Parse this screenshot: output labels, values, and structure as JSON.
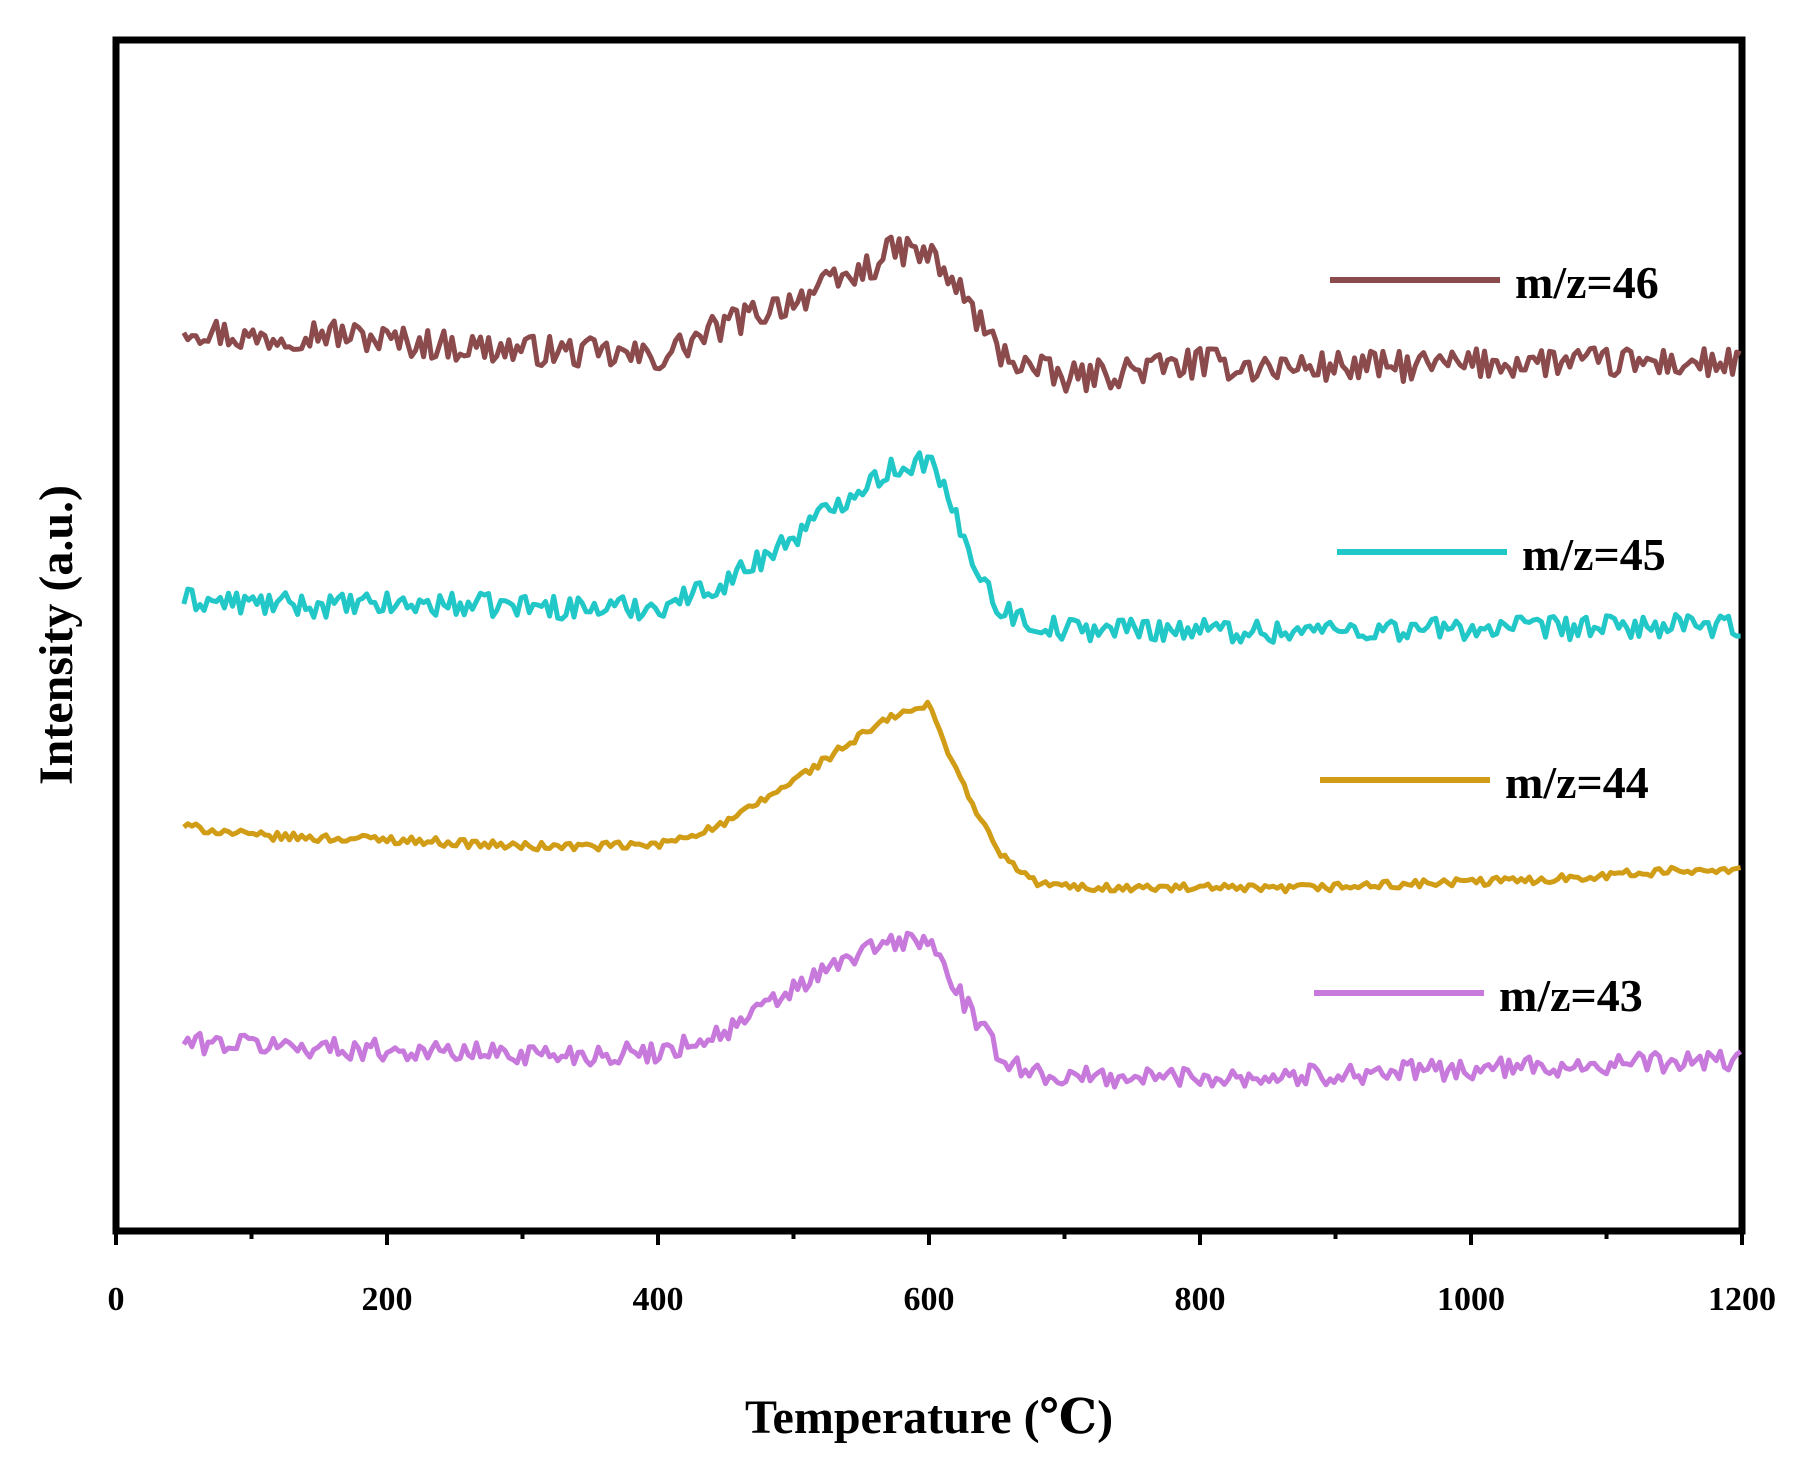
{
  "chart_data": {
    "type": "line",
    "title": "",
    "xlabel": "Temperature (℃)",
    "ylabel": "Intensity (a.u.)",
    "xlim": [
      0,
      1200
    ],
    "ylim": [
      0,
      100
    ],
    "x_ticks": [
      0,
      200,
      400,
      600,
      800,
      1000,
      1200
    ],
    "y_ticks_shown": false,
    "grid": false,
    "legend_position": "right, inline beside each curve",
    "x": [
      50,
      100,
      150,
      200,
      250,
      300,
      350,
      400,
      450,
      500,
      550,
      575,
      600,
      625,
      650,
      675,
      700,
      750,
      800,
      850,
      900,
      950,
      1000,
      1050,
      1100,
      1150,
      1200
    ],
    "series": [
      {
        "name": "m/z=46",
        "color": "#8b4a4c",
        "values": [
          76.0,
          74.9,
          75.5,
          74.8,
          74.3,
          74.0,
          73.7,
          73.3,
          76.1,
          78.2,
          80.5,
          82.4,
          82.0,
          78.6,
          74.0,
          72.5,
          71.5,
          72.3,
          72.9,
          72.5,
          72.6,
          72.6,
          72.8,
          73.0,
          72.9,
          72.9,
          72.8
        ],
        "legend_label": "m/z=46"
      },
      {
        "name": "m/z=45",
        "color": "#22c7c7",
        "values": [
          53.0,
          52.7,
          52.5,
          52.6,
          52.6,
          52.5,
          52.3,
          52.4,
          54.5,
          58.3,
          62.6,
          64.1,
          64.8,
          58.4,
          52.5,
          51.0,
          50.5,
          50.6,
          50.5,
          50.3,
          50.5,
          50.5,
          50.6,
          50.6,
          50.7,
          50.8,
          50.6
        ],
        "legend_label": "m/z=45"
      },
      {
        "name": "m/z=44",
        "color": "#d19c16",
        "values": [
          34.0,
          33.2,
          33.0,
          32.9,
          32.6,
          32.3,
          32.3,
          32.4,
          34.2,
          37.8,
          41.6,
          43.3,
          44.1,
          37.5,
          32.0,
          29.4,
          28.9,
          28.8,
          28.8,
          28.7,
          28.9,
          29.1,
          29.3,
          29.5,
          29.9,
          30.2,
          30.5
        ],
        "legend_label": "m/z=44"
      },
      {
        "name": "m/z=43",
        "color": "#c879dc",
        "values": [
          15.8,
          15.7,
          15.4,
          15.2,
          15.0,
          14.9,
          14.8,
          15.0,
          16.7,
          20.3,
          23.4,
          24.3,
          24.4,
          19.4,
          15.0,
          13.3,
          12.9,
          12.9,
          13.0,
          12.9,
          13.2,
          13.4,
          13.6,
          13.8,
          14.0,
          14.2,
          14.4
        ],
        "legend_label": "m/z=43"
      }
    ]
  }
}
